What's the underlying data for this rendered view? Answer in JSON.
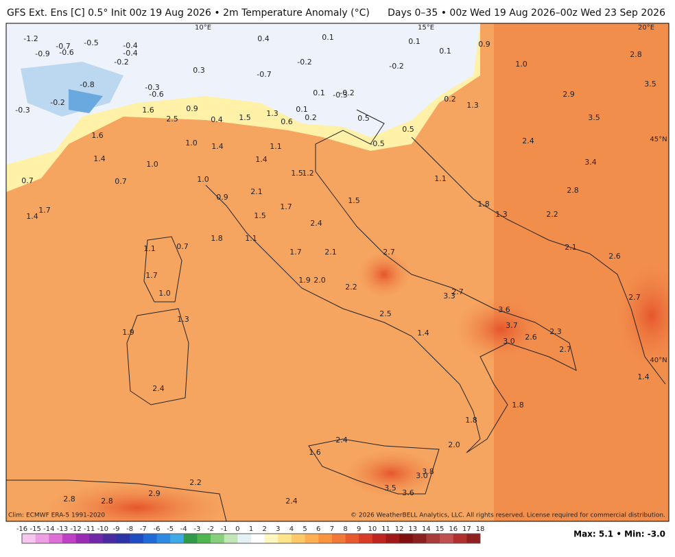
{
  "header": {
    "left": "GFS Ext. Ens [C] 0.5° Init 00z 19 Aug 2026 • 2m Temperature Anomaly (°C)",
    "right": "Days 0–35 • 00z Wed 19 Aug 2026–00z Wed 23 Sep 2026"
  },
  "map": {
    "coords": [
      "10°E",
      "15°E",
      "20°E",
      "45°N",
      "40°N"
    ],
    "labels": [
      "-1.2",
      "-0.9",
      "-0.7",
      "-0.6",
      "-0.5",
      "-0.4",
      "-0.4",
      "-0.2",
      "0.4",
      "0.1",
      "0.1",
      "0.1",
      "0.9",
      "1.0",
      "2.8",
      "-0.2",
      "-0.2",
      "0.3",
      "-0.7",
      "-0.8",
      "-0.3",
      "-0.6",
      "0.1",
      "-0.3",
      "-0.2",
      "0.2",
      "2.9",
      "3.5",
      "-0.3",
      "-0.2",
      "1.6",
      "0.9",
      "1.3",
      "0.1",
      "0.2",
      "0.6",
      "0.4",
      "1.5",
      "2.5",
      "1.3",
      "0.5",
      "0.5",
      "3.5",
      "1.6",
      "1.0",
      "1.4",
      "1.1",
      "2.4",
      "-0.5",
      "3.4",
      "1.4",
      "1.0",
      "1.4",
      "1.5",
      "1.2",
      "0.7",
      "0.7",
      "1.0",
      "2.1",
      "1.1",
      "2.8",
      "1.7",
      "1.4",
      "0.9",
      "1.7",
      "1.5",
      "1.8",
      "1.3",
      "2.2",
      "1.5",
      "2.4",
      "1.8",
      "1.1",
      "0.7",
      "1.1",
      "1.7",
      "2.1",
      "2.7",
      "2.1",
      "2.6",
      "1.7",
      "1.9",
      "2.0",
      "2.2",
      "3.3",
      "2.7",
      "2.7",
      "1.0",
      "3.6",
      "2.5",
      "1.3",
      "3.7",
      "1.9",
      "1.4",
      "3.0",
      "2.6",
      "2.3",
      "2.7",
      "1.4",
      "2.4",
      "1.8",
      "1.8",
      "2.4",
      "2.0",
      "1.6",
      "3.8",
      "3.0",
      "2.8",
      "2.9",
      "2.2",
      "2.8",
      "3.5",
      "3.6",
      "2.4"
    ]
  },
  "colorbar": {
    "ticks": [
      -16,
      -15,
      -14,
      -13,
      -12,
      -11,
      -10,
      -9,
      -8,
      -7,
      -6,
      -5,
      -4,
      -3,
      -2,
      -1,
      0,
      1,
      2,
      3,
      4,
      5,
      6,
      7,
      8,
      9,
      10,
      11,
      12,
      13,
      14,
      15,
      16,
      17,
      18
    ],
    "colors": [
      "#f7c6ee",
      "#ee9fe4",
      "#dd6fd6",
      "#c040c4",
      "#9a2cb4",
      "#7028a8",
      "#4a2aa0",
      "#2b33a6",
      "#1f4cc0",
      "#1f6ad6",
      "#2c8ae2",
      "#3fa9e6",
      "#2e9a4a",
      "#4fb54e",
      "#86cf7c",
      "#bfe6b4",
      "#e4f2f8",
      "#ffffff",
      "#fff7c0",
      "#ffe48a",
      "#ffc96a",
      "#ffae52",
      "#f89440",
      "#f07838",
      "#e85a2e",
      "#d83c28",
      "#c02420",
      "#a01818",
      "#801010",
      "#8a2020",
      "#a83a3a",
      "#c05050",
      "#b03030",
      "#902020"
    ]
  },
  "footer": {
    "clim": "Clim: ECMWF ERA-5 1991-2020",
    "copyright": "© 2026 WeatherBELL Analytics, LLC. All rights reserved. License required for commercial distribution.",
    "maxmin": "Max: 5.1 • Min: -3.0"
  }
}
